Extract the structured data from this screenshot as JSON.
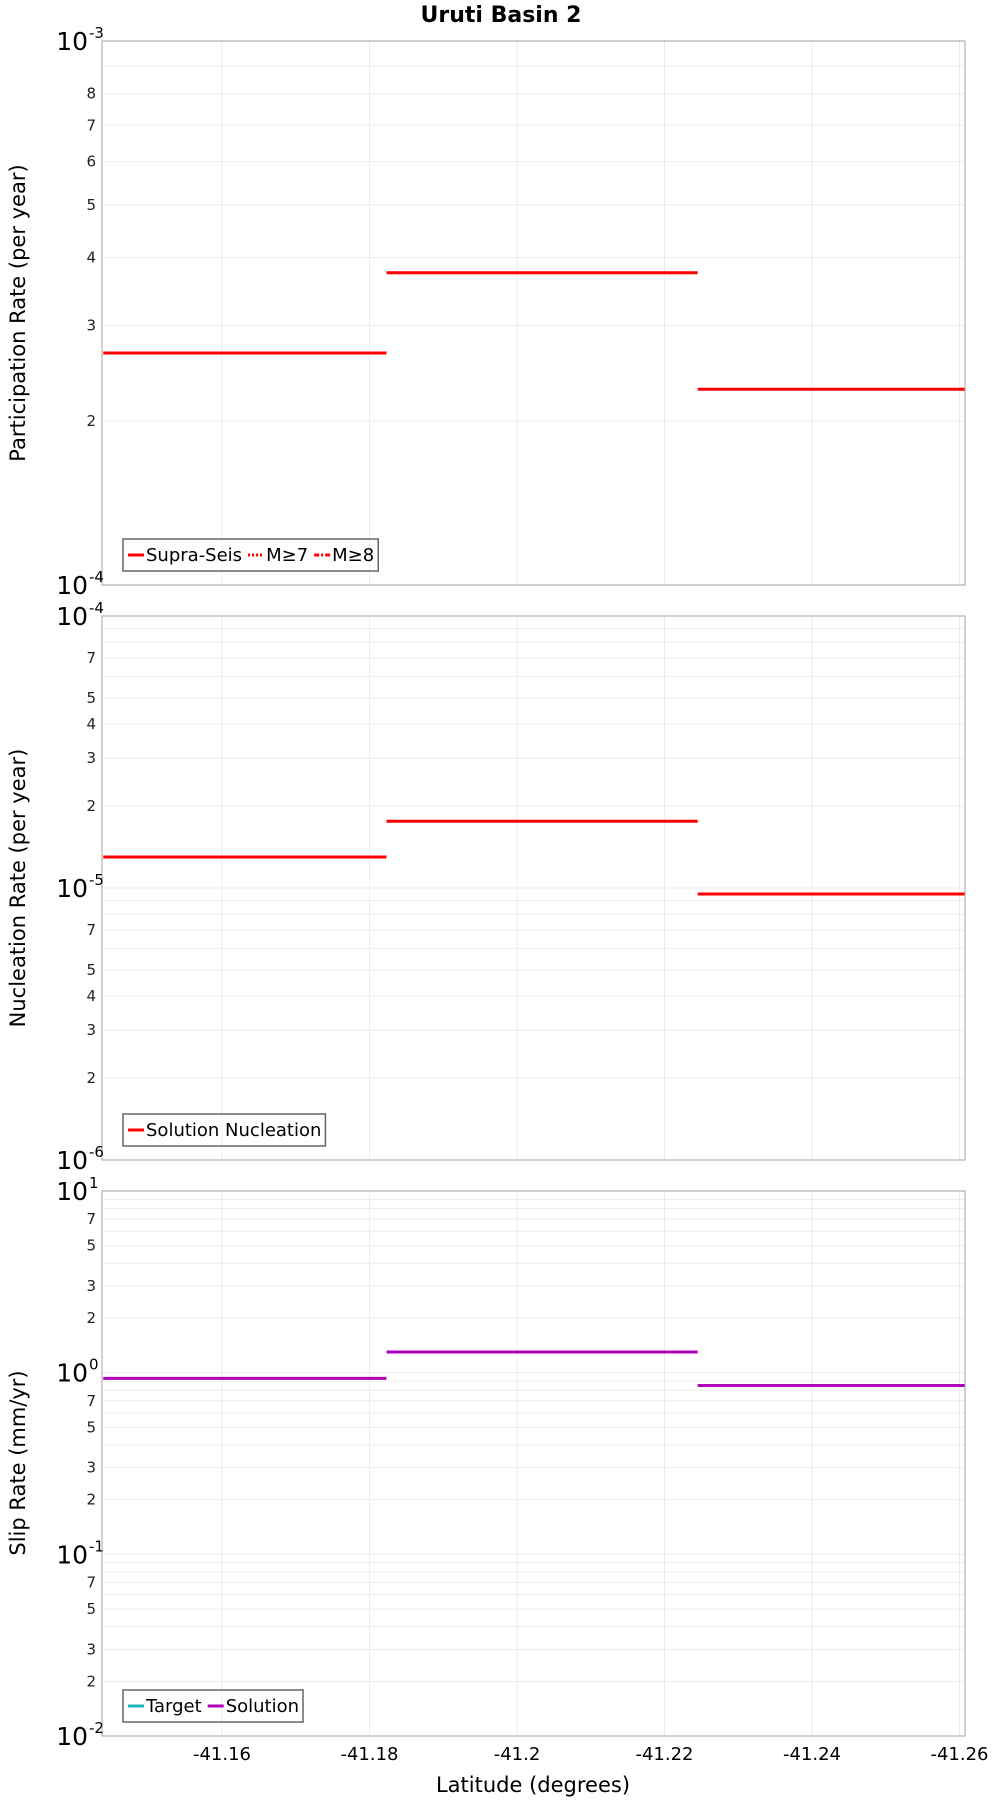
{
  "title": "Uruti Basin 2",
  "x_axis": {
    "label": "Latitude (degrees)",
    "ticks": [
      "-41.16",
      "-41.18",
      "-41.2",
      "-41.22",
      "-41.24",
      "-41.26"
    ],
    "tick_values": [
      -41.16,
      -41.18,
      -41.2,
      -41.22,
      -41.24,
      -41.26
    ],
    "range": [
      -41.1439,
      -41.2607
    ]
  },
  "colors": {
    "red": "#ff0000",
    "magenta": "#b000b8",
    "teal": "#19b4b4",
    "grid": "#ececec",
    "frame": "#b0b0b0",
    "legend_border": "#666666"
  },
  "panels": [
    {
      "id": "participation",
      "y_label": "Participation Rate (per year)",
      "y_log_range": [
        -4,
        -3
      ],
      "decade_labels": [
        {
          "base": "10",
          "exp": "-3",
          "log": -3
        },
        {
          "base": "10",
          "exp": "-4",
          "log": -4
        }
      ],
      "minor_labels": [
        "2",
        "3",
        "4",
        "5",
        "6",
        "7",
        "8"
      ],
      "legend": [
        {
          "label": "Supra-Seis",
          "color": "#ff0000",
          "style": "solid"
        },
        {
          "label": "M≥7",
          "color": "#ff0000",
          "style": "dotted"
        },
        {
          "label": "M≥8",
          "color": "#ff0000",
          "style": "dashdot"
        }
      ]
    },
    {
      "id": "nucleation",
      "y_label": "Nucleation Rate (per year)",
      "y_log_range": [
        -6,
        -4
      ],
      "decade_labels": [
        {
          "base": "10",
          "exp": "-4",
          "log": -4
        },
        {
          "base": "10",
          "exp": "-5",
          "log": -5
        },
        {
          "base": "10",
          "exp": "-6",
          "log": -6
        }
      ],
      "minor_labels": [
        "2",
        "3",
        "4",
        "5",
        "7"
      ],
      "legend": [
        {
          "label": "Solution Nucleation",
          "color": "#ff0000",
          "style": "solid"
        }
      ]
    },
    {
      "id": "slip",
      "y_label": "Slip Rate (mm/yr)",
      "y_log_range": [
        -2,
        1
      ],
      "decade_labels": [
        {
          "base": "10",
          "exp": "1",
          "log": 1
        },
        {
          "base": "10",
          "exp": "0",
          "log": 0
        },
        {
          "base": "10",
          "exp": "-1",
          "log": -1
        },
        {
          "base": "10",
          "exp": "-2",
          "log": -2
        }
      ],
      "minor_labels": [
        "2",
        "3",
        "5",
        "7"
      ],
      "legend": [
        {
          "label": "Target",
          "color": "#19b4b4",
          "style": "solid"
        },
        {
          "label": "Solution",
          "color": "#b000b8",
          "style": "solid"
        }
      ]
    }
  ],
  "chart_data": [
    {
      "type": "line",
      "title": "Uruti Basin 2",
      "xlabel": "Latitude (degrees)",
      "ylabel": "Participation Rate (per year)",
      "yscale": "log",
      "ylim": [
        0.0001,
        0.001
      ],
      "xlim": [
        -41.1439,
        -41.2607
      ],
      "grid": true,
      "legend_position": "lower left",
      "series": [
        {
          "name": "Supra-Seis",
          "color": "#ff0000",
          "style": "step",
          "segments": [
            {
              "x0": -41.1439,
              "x1": -41.1823,
              "y": 0.000267
            },
            {
              "x0": -41.1823,
              "x1": -41.2245,
              "y": 0.000375
            },
            {
              "x0": -41.2245,
              "x1": -41.2607,
              "y": 0.000229
            }
          ]
        },
        {
          "name": "M≥7",
          "color": "#ff0000",
          "style": "dotted",
          "segments": []
        },
        {
          "name": "M≥8",
          "color": "#ff0000",
          "style": "dashdot",
          "segments": []
        }
      ]
    },
    {
      "type": "line",
      "xlabel": "Latitude (degrees)",
      "ylabel": "Nucleation Rate (per year)",
      "yscale": "log",
      "ylim": [
        1e-06,
        0.0001
      ],
      "xlim": [
        -41.1439,
        -41.2607
      ],
      "grid": true,
      "legend_position": "lower left",
      "series": [
        {
          "name": "Solution Nucleation",
          "color": "#ff0000",
          "style": "step",
          "segments": [
            {
              "x0": -41.1439,
              "x1": -41.1823,
              "y": 1.3e-05
            },
            {
              "x0": -41.1823,
              "x1": -41.2245,
              "y": 1.76e-05
            },
            {
              "x0": -41.2245,
              "x1": -41.2607,
              "y": 9.5e-06
            }
          ]
        }
      ]
    },
    {
      "type": "line",
      "xlabel": "Latitude (degrees)",
      "ylabel": "Slip Rate (mm/yr)",
      "yscale": "log",
      "ylim": [
        0.01,
        10
      ],
      "xlim": [
        -41.1439,
        -41.2607
      ],
      "grid": true,
      "legend_position": "lower left",
      "series": [
        {
          "name": "Target",
          "color": "#19b4b4",
          "style": "step",
          "segments": []
        },
        {
          "name": "Solution",
          "color": "#b000b8",
          "style": "step",
          "segments": [
            {
              "x0": -41.1439,
              "x1": -41.1823,
              "y": 0.93
            },
            {
              "x0": -41.1823,
              "x1": -41.2245,
              "y": 1.3
            },
            {
              "x0": -41.2245,
              "x1": -41.2607,
              "y": 0.85
            }
          ]
        }
      ]
    }
  ]
}
